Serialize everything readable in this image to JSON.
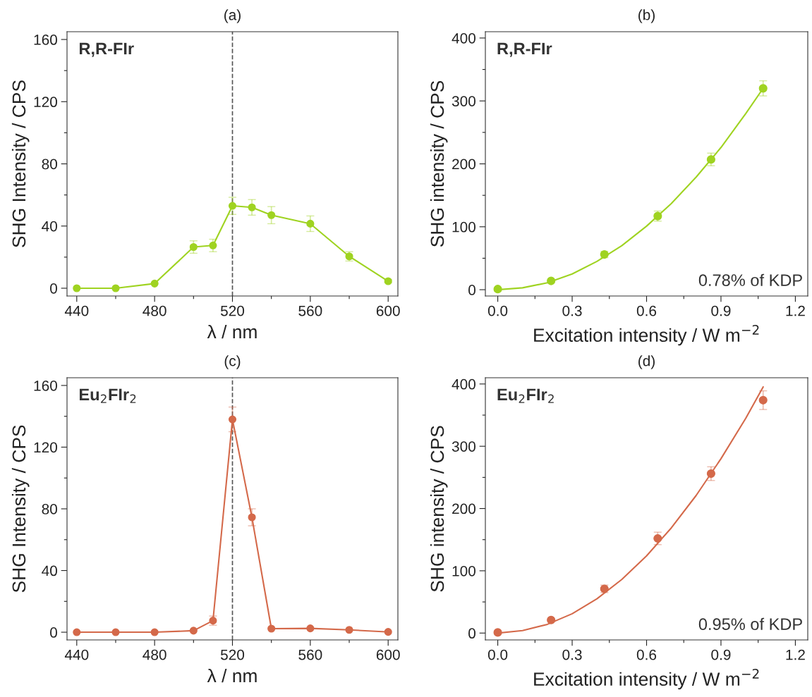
{
  "chart_data": [
    {
      "type": "line",
      "title": "(a)",
      "xlabel": "λ / nm",
      "ylabel": "SHG Intensity / CPS",
      "marker": "circle",
      "line_style": "solid",
      "x": [
        440,
        460,
        480,
        500,
        510,
        520,
        530,
        540,
        560,
        580,
        600
      ],
      "series": [
        {
          "color": "#9fd321",
          "values": [
            0,
            0,
            3,
            26.5,
            27.5,
            53,
            52,
            47,
            41.5,
            20.5,
            4.5
          ],
          "errors": [
            null,
            null,
            null,
            4,
            4,
            5.5,
            5,
            5.5,
            5,
            3,
            1
          ]
        }
      ],
      "xlim": [
        435,
        605
      ],
      "xticks": [
        440,
        {
          "value": 460,
          "label": null
        },
        480,
        {
          "value": 500,
          "label": null
        },
        520,
        {
          "value": 540,
          "label": null
        },
        560,
        {
          "value": 580,
          "label": null
        },
        600
      ],
      "ylim": [
        -5,
        165
      ],
      "yticks": [
        0,
        {
          "value": 20,
          "label": null
        },
        40,
        {
          "value": 60,
          "label": null
        },
        80,
        {
          "value": 100,
          "label": null
        },
        120,
        {
          "value": 140,
          "label": null
        },
        160
      ],
      "ref_lines": [
        {
          "axis": "x",
          "value": 520,
          "color": "#555555",
          "line_style": "dashed"
        }
      ],
      "annotations": [
        "R,R-FIr"
      ]
    },
    {
      "type": "scatter",
      "title": "(b)",
      "xlabel": "Excitation intensity / W m$^{−2}$",
      "ylabel": "SHG intensity / CPS",
      "marker": "circle",
      "x": [
        0,
        0.215,
        0.43,
        0.645,
        0.86,
        1.07
      ],
      "series": [
        {
          "color": "#9fd321",
          "values": [
            1,
            14,
            56,
            117,
            207,
            320
          ],
          "errors": [
            null,
            null,
            5,
            8,
            10,
            12
          ]
        },
        {
          "type": "line",
          "marker": "none",
          "line_style": "solid",
          "color": "#9fd321",
          "x": [
            0,
            0.1,
            0.2,
            0.3,
            0.4,
            0.5,
            0.6,
            0.7,
            0.8,
            0.9,
            1.0,
            1.07
          ],
          "values": [
            0,
            3,
            11,
            25,
            45,
            70,
            101,
            137,
            179,
            226,
            280,
            320
          ]
        }
      ],
      "xlim": [
        -0.05,
        1.25
      ],
      "xticks": [
        {
          "value": 0,
          "label": "0.0"
        },
        {
          "value": 0.15,
          "label": null
        },
        0.3,
        {
          "value": 0.45,
          "label": null
        },
        0.6,
        {
          "value": 0.75,
          "label": null
        },
        0.9,
        {
          "value": 1.05,
          "label": null
        },
        1.2
      ],
      "ylim": [
        -10,
        410
      ],
      "yticks": [
        0,
        {
          "value": 50,
          "label": null
        },
        100,
        {
          "value": 150,
          "label": null
        },
        200,
        {
          "value": 250,
          "label": null
        },
        300,
        {
          "value": 350,
          "label": null
        },
        400
      ],
      "annotations": [
        "R,R-FIr",
        "0.78% of KDP"
      ]
    },
    {
      "type": "line",
      "title": "(c)",
      "xlabel": "λ / nm",
      "ylabel": "SHG Intensity / CPS",
      "marker": "circle",
      "line_style": "solid",
      "x": [
        440,
        460,
        480,
        500,
        510,
        520,
        530,
        540,
        560,
        580,
        600
      ],
      "series": [
        {
          "color": "#d4694a",
          "values": [
            0,
            0,
            0,
            1,
            7.5,
            138,
            74.5,
            2.3,
            2.5,
            1.5,
            0.2
          ],
          "errors": [
            null,
            null,
            null,
            null,
            3,
            8,
            5.5,
            null,
            null,
            null,
            null
          ]
        }
      ],
      "xlim": [
        435,
        605
      ],
      "xticks": [
        440,
        {
          "value": 460,
          "label": null
        },
        480,
        {
          "value": 500,
          "label": null
        },
        520,
        {
          "value": 540,
          "label": null
        },
        560,
        {
          "value": 580,
          "label": null
        },
        600
      ],
      "ylim": [
        -5,
        165
      ],
      "yticks": [
        0,
        {
          "value": 20,
          "label": null
        },
        40,
        {
          "value": 60,
          "label": null
        },
        80,
        {
          "value": 100,
          "label": null
        },
        120,
        {
          "value": 140,
          "label": null
        },
        160
      ],
      "ref_lines": [
        {
          "axis": "x",
          "value": 520,
          "color": "#555555",
          "line_style": "dashed"
        }
      ],
      "annotations": [
        "Eu$_{2}$FIr$_{2}$"
      ]
    },
    {
      "type": "scatter",
      "title": "(d)",
      "xlabel": "Excitation intensity / W m$^{−2}$",
      "ylabel": "SHG intensity / CPS",
      "marker": "circle",
      "x": [
        0,
        0.215,
        0.43,
        0.645,
        0.86,
        1.07
      ],
      "series": [
        {
          "color": "#d4694a",
          "values": [
            1,
            21,
            71,
            152,
            256,
            374
          ],
          "errors": [
            null,
            null,
            6,
            10,
            11,
            15
          ]
        },
        {
          "type": "line",
          "marker": "none",
          "line_style": "solid",
          "color": "#d4694a",
          "x": [
            0,
            0.1,
            0.2,
            0.3,
            0.4,
            0.5,
            0.6,
            0.7,
            0.8,
            0.9,
            1.0,
            1.07
          ],
          "values": [
            0,
            4,
            14,
            31,
            55,
            86,
            124,
            169,
            221,
            280,
            345,
            395
          ]
        }
      ],
      "xlim": [
        -0.05,
        1.25
      ],
      "xticks": [
        {
          "value": 0,
          "label": "0.0"
        },
        {
          "value": 0.15,
          "label": null
        },
        0.3,
        {
          "value": 0.45,
          "label": null
        },
        0.6,
        {
          "value": 0.75,
          "label": null
        },
        0.9,
        {
          "value": 1.05,
          "label": null
        },
        1.2
      ],
      "ylim": [
        -11,
        410
      ],
      "yticks": [
        0,
        {
          "value": 50,
          "label": null
        },
        100,
        {
          "value": 150,
          "label": null
        },
        200,
        {
          "value": 250,
          "label": null
        },
        300,
        {
          "value": 350,
          "label": null
        },
        400
      ],
      "annotations": [
        "Eu$_{2}$FIr$_{2}$",
        "0.95% of KDP"
      ]
    }
  ]
}
